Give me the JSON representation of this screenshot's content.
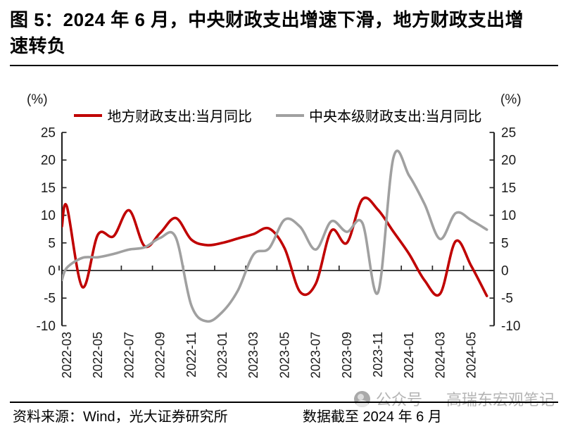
{
  "title": {
    "line1": "图 5：2024 年 6 月，中央财政支出增速下滑，地方财政支出增",
    "line2": "速转负"
  },
  "footer": {
    "source": "资料来源：Wind，光大证券研究所",
    "cutoff": "数据截至 2024 年 6 月",
    "watermark_prefix": "公众号",
    "watermark_name": "高瑞东宏观笔记"
  },
  "colors": {
    "local_series": "#C00000",
    "central_series": "#A0A0A0",
    "axis": "#262626",
    "tick_text": "#1a1a1a",
    "watermark": "#b4b4b4"
  },
  "chart_data": {
    "type": "line",
    "unit": "(%)",
    "grid": false,
    "legend_position": "top",
    "ylim": [
      -10,
      25
    ],
    "yticks": [
      25,
      20,
      15,
      10,
      5,
      0,
      -5,
      -10
    ],
    "x": [
      "2022-03",
      "2022-04",
      "2022-05",
      "2022-06",
      "2022-07",
      "2022-08",
      "2022-09",
      "2022-10",
      "2022-11",
      "2022-12",
      "2023-01",
      "2023-02",
      "2023-03",
      "2023-04",
      "2023-05",
      "2023-06",
      "2023-07",
      "2023-08",
      "2023-09",
      "2023-10",
      "2023-11",
      "2023-12",
      "2024-01",
      "2024-02",
      "2024-03",
      "2024-04",
      "2024-05",
      "2024-06"
    ],
    "x_tick_labels": [
      "2022-03",
      "2022-05",
      "2022-07",
      "2022-09",
      "2022-11",
      "2023-01",
      "2023-03",
      "2023-05",
      "2023-07",
      "2023-09",
      "2023-11",
      "2024-01",
      "2024-03",
      "2024-05"
    ],
    "series": [
      {
        "name": "地方财政支出:当月同比",
        "color": "#C00000",
        "edge_value": 8.0,
        "values": [
          11.6,
          -3.0,
          6.5,
          6.2,
          10.9,
          4.4,
          6.8,
          9.5,
          5.6,
          4.6,
          5.0,
          5.8,
          6.6,
          7.6,
          4.0,
          -3.9,
          -2.4,
          7.2,
          5.0,
          12.9,
          11.0,
          7.0,
          3.0,
          -1.8,
          -4.2,
          5.3,
          0.8,
          -4.6
        ]
      },
      {
        "name": "中央本级财政支出:当月同比",
        "color": "#A0A0A0",
        "edge_value": -1.7,
        "values": [
          0.5,
          2.3,
          2.4,
          3.0,
          3.8,
          4.2,
          5.9,
          6.0,
          -6.3,
          -9.2,
          -7.5,
          -3.6,
          2.9,
          4.0,
          9.2,
          7.9,
          3.8,
          8.9,
          7.0,
          8.6,
          -4.0,
          20.5,
          17.2,
          12.0,
          5.7,
          10.4,
          9.1,
          7.4
        ]
      }
    ]
  }
}
